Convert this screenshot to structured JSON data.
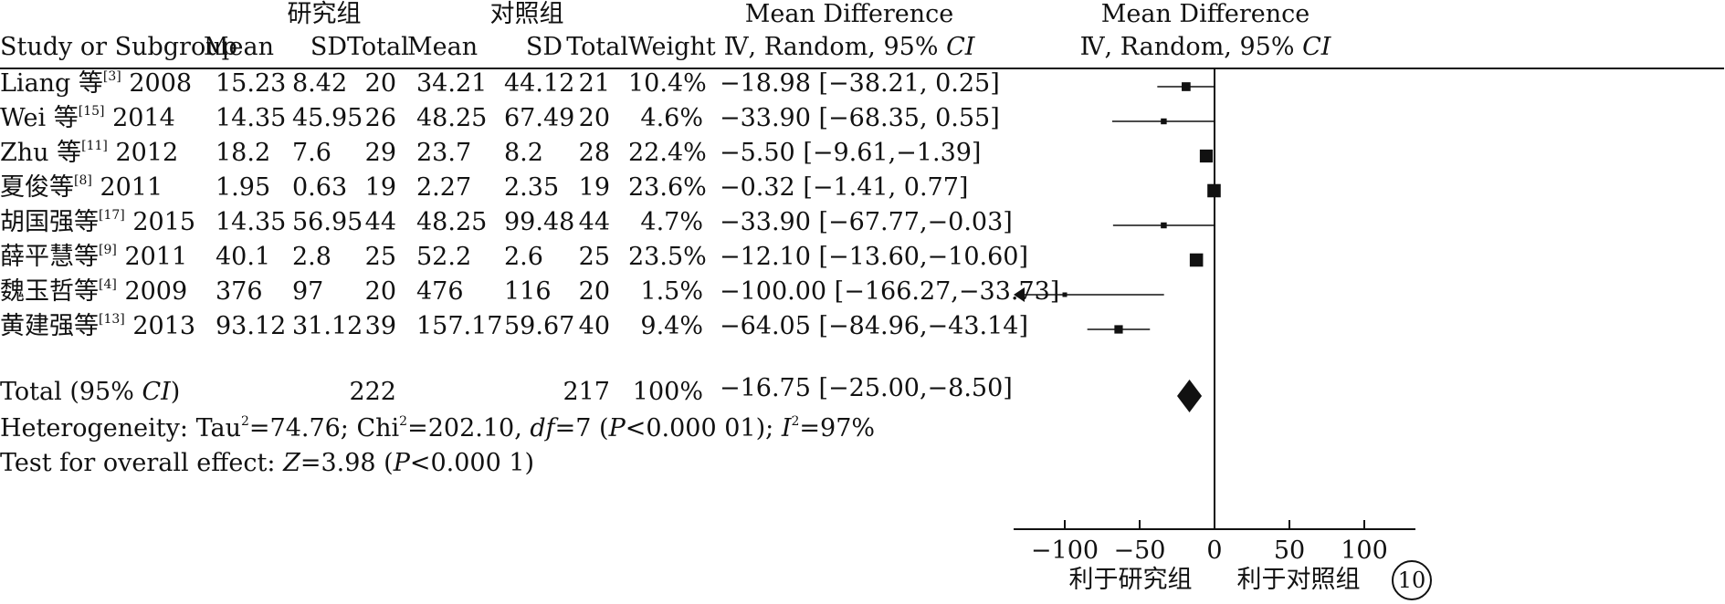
{
  "header": {
    "group1_label": "研究组",
    "group2_label": "对照组",
    "md_label": "Mean Difference",
    "md_method": "Ⅳ, Random, 95%",
    "ci_label": "CI",
    "plot_md_label": "Mean Difference",
    "plot_md_method": "Ⅳ, Random, 95%",
    "plot_ci_label": "CI",
    "columns": {
      "study": "Study or Subgroup",
      "mean1": "Mean",
      "sd1": "SD",
      "total1": "Total",
      "mean2": "Mean",
      "sd2": "SD",
      "total2": "Total",
      "weight": "Weight"
    }
  },
  "studies": [
    {
      "name": "Liang 等",
      "ref": "[3]",
      "year": "2008",
      "mean1": "15.23",
      "sd1": "8.42",
      "total1": "20",
      "mean2": "34.21",
      "sd2": "44.12",
      "total2": "21",
      "weight": "10.4%",
      "ci_text": "−18.98 [−38.21, 0.25]"
    },
    {
      "name": "Wei 等",
      "ref": "[15]",
      "year": "2014",
      "mean1": "14.35",
      "sd1": "45.95",
      "total1": "26",
      "mean2": "48.25",
      "sd2": "67.49",
      "total2": "20",
      "weight": "4.6%",
      "ci_text": "−33.90 [−68.35, 0.55]"
    },
    {
      "name": "Zhu 等",
      "ref": "[11]",
      "year": "2012",
      "mean1": "18.2",
      "sd1": "7.6",
      "total1": "29",
      "mean2": "23.7",
      "sd2": "8.2",
      "total2": "28",
      "weight": "22.4%",
      "ci_text": "−5.50 [−9.61,−1.39]"
    },
    {
      "name": "夏俊等",
      "ref": "[8]",
      "year": "2011",
      "mean1": "1.95",
      "sd1": "0.63",
      "total1": "19",
      "mean2": "2.27",
      "sd2": "2.35",
      "total2": "19",
      "weight": "23.6%",
      "ci_text": "−0.32 [−1.41, 0.77]"
    },
    {
      "name": "胡国强等",
      "ref": "[17]",
      "year": "2015",
      "mean1": "14.35",
      "sd1": "56.95",
      "total1": "44",
      "mean2": "48.25",
      "sd2": "99.48",
      "total2": "44",
      "weight": "4.7%",
      "ci_text": "−33.90 [−67.77,−0.03]"
    },
    {
      "name": "薛平慧等",
      "ref": "[9]",
      "year": "2011",
      "mean1": "40.1",
      "sd1": "2.8",
      "total1": "25",
      "mean2": "52.2",
      "sd2": "2.6",
      "total2": "25",
      "weight": "23.5%",
      "ci_text": "−12.10 [−13.60,−10.60]"
    },
    {
      "name": "魏玉哲等",
      "ref": "[4]",
      "year": "2009",
      "mean1": "376",
      "sd1": "97",
      "total1": "20",
      "mean2": "476",
      "sd2": "116",
      "total2": "20",
      "weight": "1.5%",
      "ci_text": "−100.00 [−166.27,−33.73]"
    },
    {
      "name": "黄建强等",
      "ref": "[13]",
      "year": "2013",
      "mean1": "93.12",
      "sd1": "31.12",
      "total1": "39",
      "mean2": "157.17",
      "sd2": "59.67",
      "total2": "40",
      "weight": "9.4%",
      "ci_text": "−64.05 [−84.96,−43.14]"
    }
  ],
  "total": {
    "label_pre": "Total (95% ",
    "label_ci": "CI",
    "label_post": ")",
    "total1": "222",
    "total2": "217",
    "weight": "100%",
    "ci_text": "−16.75 [−25.00,−8.50]"
  },
  "heterogeneity": {
    "label": "Heterogeneity: Tau",
    "tau_exp": "2",
    "tau_val": "=74.76; Chi",
    "chi_exp": "2",
    "chi_val": "=202.10, ",
    "df_label": "df",
    "df_val": "=7 (",
    "p_label": "P",
    "p_val": "<0.000 01); ",
    "i_label": "I",
    "i_exp": "2",
    "i_val": "=97%"
  },
  "overall": {
    "label": "Test for overall effect: ",
    "z_label": "Z",
    "z_val": "=3.98 (",
    "p_label": "P",
    "p_val": "<0.000 1)"
  },
  "axis_labels": {
    "left": "利于研究组",
    "right": "利于对照组"
  },
  "figure_number": "10",
  "chart_data": {
    "type": "forest",
    "xlim": [
      -100,
      100
    ],
    "ticks": [
      -100,
      -50,
      0,
      50,
      100
    ],
    "tick_labels": [
      "−100",
      "−50",
      "0",
      "50",
      "100"
    ],
    "studies": [
      {
        "md": -18.98,
        "lower": -38.21,
        "upper": 0.25,
        "weight": 10.4
      },
      {
        "md": -33.9,
        "lower": -68.35,
        "upper": 0.55,
        "weight": 4.6
      },
      {
        "md": -5.5,
        "lower": -9.61,
        "upper": -1.39,
        "weight": 22.4
      },
      {
        "md": -0.32,
        "lower": -1.41,
        "upper": 0.77,
        "weight": 23.6
      },
      {
        "md": -33.9,
        "lower": -67.77,
        "upper": -0.03,
        "weight": 4.7
      },
      {
        "md": -12.1,
        "lower": -13.6,
        "upper": -10.6,
        "weight": 23.5
      },
      {
        "md": -100.0,
        "lower": -166.27,
        "upper": -33.73,
        "weight": 1.5
      },
      {
        "md": -64.05,
        "lower": -84.96,
        "upper": -43.14,
        "weight": 9.4
      }
    ],
    "pooled": {
      "md": -16.75,
      "lower": -25.0,
      "upper": -8.5
    }
  }
}
